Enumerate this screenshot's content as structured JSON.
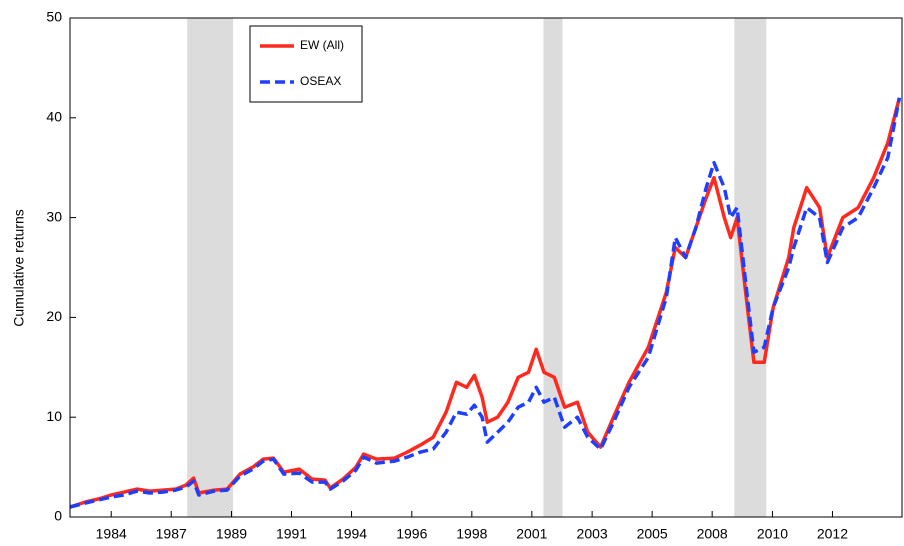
{
  "chart_data": {
    "type": "line",
    "ylabel": "Cumulative returns",
    "xlim": [
      1982.9,
      2015.2
    ],
    "xticks": [
      {
        "value": 1984.5,
        "label": "1984"
      },
      {
        "value": 1986.83,
        "label": "1987"
      },
      {
        "value": 1989.17,
        "label": "1989"
      },
      {
        "value": 1991.5,
        "label": "1991"
      },
      {
        "value": 1993.83,
        "label": "1994"
      },
      {
        "value": 1996.17,
        "label": "1996"
      },
      {
        "value": 1998.5,
        "label": "1998"
      },
      {
        "value": 2000.83,
        "label": "2001"
      },
      {
        "value": 2003.17,
        "label": "2003"
      },
      {
        "value": 2005.5,
        "label": "2005"
      },
      {
        "value": 2007.83,
        "label": "2008"
      },
      {
        "value": 2010.17,
        "label": "2010"
      },
      {
        "value": 2012.5,
        "label": "2012"
      }
    ],
    "ylim": [
      0,
      50
    ],
    "yticks": [
      0,
      10,
      20,
      30,
      40,
      50
    ],
    "grid": false,
    "legend": "upper left",
    "shaded_regions": [
      [
        1987.45,
        1989.23
      ],
      [
        2001.28,
        2002.02
      ],
      [
        2008.69,
        2009.93
      ]
    ],
    "shade_color": "#dcdcdc",
    "x": [
      1982.9,
      1983.5,
      1984.0,
      1984.5,
      1985.0,
      1985.5,
      1986.0,
      1986.5,
      1987.0,
      1987.4,
      1987.7,
      1987.9,
      1988.5,
      1989.0,
      1989.5,
      1990.0,
      1990.4,
      1990.8,
      1991.2,
      1991.8,
      1992.3,
      1992.8,
      1993.0,
      1993.5,
      1994.0,
      1994.3,
      1994.8,
      1995.5,
      1996.0,
      1996.5,
      1997.0,
      1997.5,
      1997.9,
      1998.3,
      1998.6,
      1998.9,
      1999.1,
      1999.5,
      1999.9,
      2000.3,
      2000.7,
      2001.0,
      2001.3,
      2001.7,
      2002.1,
      2002.6,
      2003.0,
      2003.5,
      2004.0,
      2004.6,
      2005.35,
      2006.05,
      2006.4,
      2006.8,
      2007.2,
      2007.6,
      2007.9,
      2008.3,
      2008.55,
      2008.8,
      2009.2,
      2009.45,
      2009.85,
      2010.2,
      2010.8,
      2011.0,
      2011.5,
      2012.0,
      2012.3,
      2012.9,
      2013.5,
      2014.1,
      2014.65,
      2015.1
    ],
    "series": [
      {
        "name": "EW (All)",
        "color": "#ff2a1f",
        "dash": "solid",
        "values": [
          1.0,
          1.5,
          1.8,
          2.2,
          2.5,
          2.8,
          2.6,
          2.7,
          2.8,
          3.2,
          3.9,
          2.4,
          2.7,
          2.8,
          4.3,
          5.0,
          5.8,
          5.9,
          4.5,
          4.8,
          3.8,
          3.7,
          2.9,
          3.8,
          5.0,
          6.3,
          5.8,
          5.9,
          6.5,
          7.2,
          8.0,
          10.5,
          13.5,
          13.0,
          14.2,
          12.0,
          9.5,
          10.0,
          11.5,
          14.0,
          14.5,
          16.8,
          14.5,
          14.0,
          11.0,
          11.5,
          8.5,
          7.0,
          10.0,
          13.5,
          17.0,
          22.5,
          27.0,
          26.0,
          29,
          32,
          34.0,
          30.0,
          28.0,
          30.0,
          21.0,
          15.5,
          15.5,
          21.0,
          26.0,
          29.0,
          33.0,
          31.0,
          26.0,
          30.0,
          31.0,
          34.0,
          37.5,
          42.0
        ]
      },
      {
        "name": "OSEAX",
        "color": "#1f3fff",
        "dash": "dashed",
        "values": [
          1.0,
          1.4,
          1.7,
          2.0,
          2.2,
          2.6,
          2.4,
          2.5,
          2.7,
          3.0,
          3.6,
          2.2,
          2.6,
          2.7,
          4.1,
          4.8,
          5.6,
          5.8,
          4.3,
          4.4,
          3.5,
          3.5,
          2.8,
          3.6,
          4.7,
          6.0,
          5.4,
          5.6,
          6.0,
          6.5,
          6.8,
          8.5,
          10.5,
          10.3,
          11.2,
          10.0,
          7.5,
          8.5,
          9.5,
          11.0,
          11.5,
          13.0,
          11.5,
          12.0,
          9.0,
          10.0,
          8.0,
          6.8,
          9.5,
          13.0,
          16.0,
          22.0,
          28.0,
          26.0,
          29,
          33,
          35.5,
          33.0,
          30.0,
          31.0,
          22.0,
          16.5,
          17.0,
          21.0,
          25.0,
          27.0,
          31.0,
          30.0,
          25.5,
          29.0,
          30.0,
          33.0,
          36.0,
          42.0
        ]
      }
    ]
  }
}
